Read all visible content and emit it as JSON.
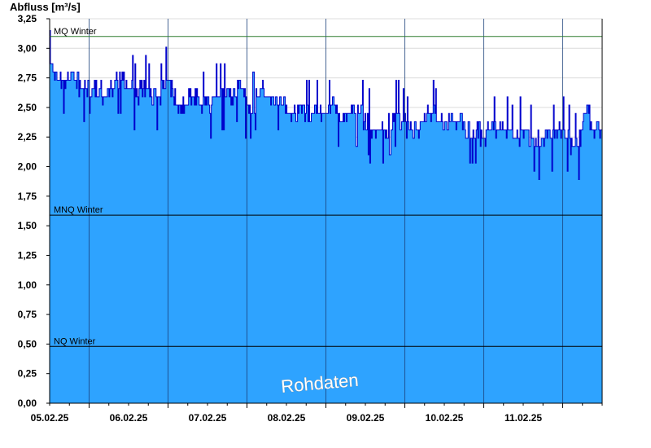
{
  "chart_data": {
    "type": "area",
    "ylabel": "Abfluss [m³/s]",
    "ylim": [
      0,
      3.25
    ],
    "yticks": [
      0,
      0.25,
      0.5,
      0.75,
      1.0,
      1.25,
      1.5,
      1.75,
      2.0,
      2.25,
      2.5,
      2.75,
      3.0,
      3.25
    ],
    "ytick_labels": [
      "0,00",
      "0,25",
      "0,50",
      "0,75",
      "1,00",
      "1,25",
      "1,50",
      "1,75",
      "2,00",
      "2,25",
      "2,50",
      "2,75",
      "3,00",
      "3,25"
    ],
    "xlim_days": [
      4.5,
      11.5
    ],
    "x_day_boundaries": [
      5,
      6,
      7,
      8,
      9,
      10,
      11
    ],
    "xtick_labels": [
      "05.02.25",
      "06.02.25",
      "07.02.25",
      "08.02.25",
      "09.02.25",
      "10.02.25",
      "11.02.25"
    ],
    "xtick_positions_days": [
      4.5,
      5.5,
      6.5,
      7.5,
      8.5,
      9.5,
      10.5
    ],
    "reference_lines": [
      {
        "label": "MQ Winter",
        "value": 3.1,
        "color": "#2e7d2e"
      },
      {
        "label": "MNQ Winter",
        "value": 1.59,
        "color": "#000000"
      },
      {
        "label": "NQ Winter",
        "value": 0.48,
        "color": "#000000"
      }
    ],
    "fill_color": "#2ea3ff",
    "line_color": "#0000cc",
    "watermark": "Rohdaten",
    "series": [
      {
        "x_days": [
          4.5,
          4.6,
          4.7,
          4.8,
          4.9,
          5.0,
          5.1,
          5.2,
          5.3,
          5.4,
          5.5,
          5.6,
          5.7,
          5.8,
          5.9,
          6.0,
          6.1,
          6.2,
          6.3,
          6.4,
          6.5,
          6.6,
          6.7,
          6.8,
          6.9,
          7.0,
          7.1,
          7.2,
          7.3,
          7.4,
          7.5,
          7.6,
          7.7,
          7.8,
          7.9,
          8.0,
          8.1,
          8.2,
          8.3,
          8.4,
          8.5,
          8.6,
          8.7,
          8.8,
          8.9,
          9.0,
          9.1,
          9.2,
          9.3,
          9.4,
          9.5,
          9.6,
          9.7,
          9.8,
          9.9,
          10.0,
          10.1,
          10.2,
          10.3,
          10.4,
          10.5,
          10.6,
          10.7,
          10.8,
          10.9,
          11.0,
          11.1,
          11.2,
          11.3,
          11.4,
          11.5
        ],
        "values": [
          2.85,
          2.75,
          2.7,
          2.8,
          2.65,
          2.7,
          2.65,
          2.6,
          2.7,
          2.75,
          2.65,
          2.6,
          2.7,
          2.55,
          2.6,
          2.75,
          2.55,
          2.5,
          2.6,
          2.55,
          2.5,
          2.6,
          2.6,
          2.6,
          2.7,
          2.5,
          2.55,
          2.7,
          2.55,
          2.6,
          2.45,
          2.45,
          2.5,
          2.4,
          2.45,
          2.45,
          2.5,
          2.4,
          2.45,
          2.45,
          2.4,
          2.3,
          2.3,
          2.35,
          2.45,
          2.35,
          2.3,
          2.35,
          2.45,
          2.4,
          2.35,
          2.35,
          2.4,
          2.3,
          2.3,
          2.25,
          2.35,
          2.3,
          2.3,
          2.25,
          2.3,
          2.25,
          2.2,
          2.3,
          2.25,
          2.3,
          2.2,
          2.2,
          2.5,
          2.3,
          2.35
        ]
      }
    ]
  }
}
